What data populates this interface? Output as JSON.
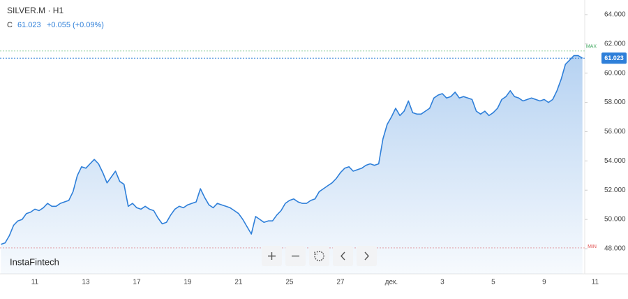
{
  "chart_data": {
    "type": "area",
    "title": "SILVER.M · H1",
    "close_label": "C",
    "close": 61.023,
    "change": "+0.055 (+0.09%)",
    "brand": "InstaFintech",
    "color": "#2e7fd9",
    "max_line": {
      "value": 61.52,
      "label": "MAX"
    },
    "min_line": {
      "value": 48.05,
      "label": "MIN"
    },
    "last_price": 61.023,
    "ylim": [
      46.28,
      65.0
    ],
    "yticks": [
      {
        "value": 48,
        "label": "48.000"
      },
      {
        "value": 50,
        "label": "50.000"
      },
      {
        "value": 52,
        "label": "52.000"
      },
      {
        "value": 54,
        "label": "54.000"
      },
      {
        "value": 56,
        "label": "56.000"
      },
      {
        "value": 58,
        "label": "58.000"
      },
      {
        "value": 60,
        "label": "60.000"
      },
      {
        "value": 62,
        "label": "62.000"
      },
      {
        "value": 64,
        "label": "64.000"
      }
    ],
    "categories": [
      null,
      null,
      null,
      null,
      null,
      null,
      null,
      null,
      "11",
      null,
      null,
      null,
      null,
      null,
      null,
      null,
      null,
      null,
      null,
      null,
      "13",
      null,
      null,
      null,
      null,
      null,
      null,
      null,
      null,
      null,
      null,
      null,
      "17",
      null,
      null,
      null,
      null,
      null,
      null,
      null,
      null,
      null,
      null,
      null,
      "19",
      null,
      null,
      null,
      null,
      null,
      null,
      null,
      null,
      null,
      null,
      null,
      "21",
      null,
      null,
      null,
      null,
      null,
      null,
      null,
      null,
      null,
      null,
      null,
      "25",
      null,
      null,
      null,
      null,
      null,
      null,
      null,
      null,
      null,
      null,
      null,
      "27",
      null,
      null,
      null,
      null,
      null,
      null,
      null,
      null,
      null,
      null,
      null,
      "дек.",
      null,
      null,
      null,
      null,
      null,
      null,
      null,
      null,
      null,
      null,
      null,
      "3",
      null,
      null,
      null,
      null,
      null,
      null,
      null,
      null,
      null,
      null,
      null,
      "5",
      null,
      null,
      null,
      null,
      null,
      null,
      null,
      null,
      null,
      null,
      null,
      "9",
      null,
      null,
      null,
      null,
      null,
      null,
      null,
      null,
      null,
      null,
      null,
      "11"
    ],
    "series": [
      {
        "values": [
          48.3,
          48.4,
          48.9,
          49.6,
          49.9,
          50.0,
          50.4,
          50.5,
          50.7,
          50.6,
          50.8,
          51.1,
          50.9,
          50.9,
          51.1,
          51.2,
          51.3,
          51.9,
          53.0,
          53.6,
          53.5,
          53.8,
          54.1,
          53.8,
          53.2,
          52.5,
          52.9,
          53.3,
          52.6,
          52.4,
          50.9,
          51.1,
          50.8,
          50.7,
          50.9,
          50.7,
          50.6,
          50.1,
          49.7,
          49.8,
          50.3,
          50.7,
          50.9,
          50.8,
          51.0,
          51.1,
          51.2,
          52.1,
          51.5,
          51.0,
          50.8,
          51.1,
          51.0,
          50.9,
          50.8,
          50.6,
          50.4,
          50.0,
          49.5,
          49.0,
          50.2,
          50.0,
          49.8,
          49.9,
          49.9,
          50.3,
          50.6,
          51.1,
          51.3,
          51.4,
          51.2,
          51.1,
          51.1,
          51.3,
          51.4,
          51.9,
          52.1,
          52.3,
          52.5,
          52.8,
          53.2,
          53.5,
          53.6,
          53.3,
          53.4,
          53.5,
          53.7,
          53.8,
          53.7,
          53.8,
          55.5,
          56.5,
          57.0,
          57.6,
          57.1,
          57.4,
          58.1,
          57.3,
          57.2,
          57.2,
          57.4,
          57.6,
          58.3,
          58.5,
          58.6,
          58.3,
          58.4,
          58.7,
          58.3,
          58.4,
          58.3,
          58.2,
          57.4,
          57.2,
          57.4,
          57.1,
          57.3,
          57.6,
          58.2,
          58.4,
          58.8,
          58.4,
          58.3,
          58.1,
          58.2,
          58.3,
          58.2,
          58.1,
          58.2,
          58.0,
          58.2,
          58.8,
          59.6,
          60.6,
          60.9,
          61.2,
          61.2,
          61.023,
          null,
          null,
          null
        ]
      }
    ]
  }
}
